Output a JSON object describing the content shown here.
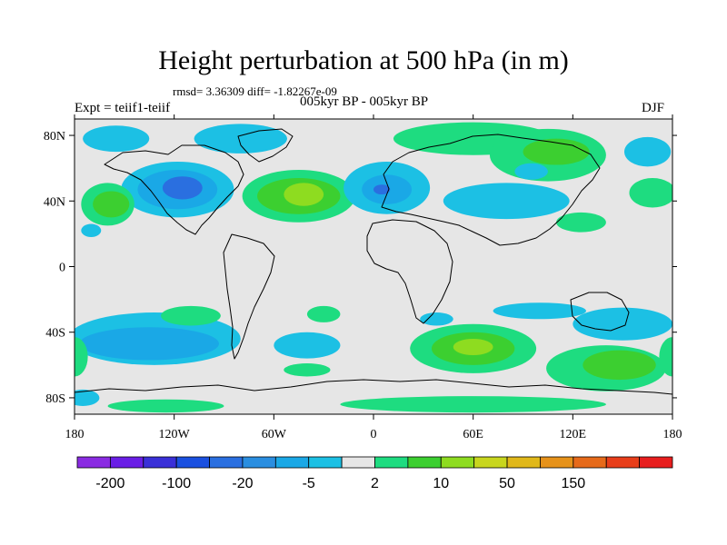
{
  "chart_data": {
    "type": "heatmap",
    "title": "Height perturbation at 500 hPa (in m)",
    "stats": "rmsd= 3.36309 diff= -1.82267e-09",
    "left_label": "Expt = teiif1-teiif",
    "center_label": "005kyr BP - 005kyr BP",
    "right_label": "DJF",
    "xlim": [
      -180,
      180
    ],
    "ylim": [
      -90,
      90
    ],
    "x_ticks": [
      {
        "value": -180,
        "label": "180"
      },
      {
        "value": -120,
        "label": "120W"
      },
      {
        "value": -60,
        "label": "60W"
      },
      {
        "value": 0,
        "label": "0"
      },
      {
        "value": 60,
        "label": "60E"
      },
      {
        "value": 120,
        "label": "120E"
      },
      {
        "value": 180,
        "label": "180"
      }
    ],
    "y_ticks": [
      {
        "value": 80,
        "label": "80N"
      },
      {
        "value": 40,
        "label": "40N"
      },
      {
        "value": 0,
        "label": "0"
      },
      {
        "value": -40,
        "label": "40S"
      },
      {
        "value": -80,
        "label": "80S"
      }
    ],
    "colorbar": {
      "colors": [
        "#8a2be2",
        "#6a1ee6",
        "#3a30d8",
        "#1a50e0",
        "#2a6fe0",
        "#2a8ee0",
        "#1aa8e6",
        "#1cc0e4",
        "#e6e6e6",
        "#1edc80",
        "#3ccf30",
        "#8edc20",
        "#c8d61e",
        "#e0b81a",
        "#e6921a",
        "#e66a1a",
        "#e83e1a",
        "#e81e1e"
      ],
      "labels": [
        {
          "boundary": 1,
          "text": "-200"
        },
        {
          "boundary": 3,
          "text": "-100"
        },
        {
          "boundary": 5,
          "text": "-20"
        },
        {
          "boundary": 7,
          "text": "-5"
        },
        {
          "boundary": 9,
          "text": "2"
        },
        {
          "boundary": 11,
          "text": "10"
        },
        {
          "boundary": 13,
          "text": "50"
        },
        {
          "boundary": 15,
          "text": "150"
        }
      ]
    },
    "regions": [
      {
        "lon": -118,
        "lat": 47,
        "rx": 34,
        "ry": 17,
        "level": "-5"
      },
      {
        "lon": -118,
        "lat": 47,
        "rx": 24,
        "ry": 12,
        "level": "-10"
      },
      {
        "lon": -115,
        "lat": 48,
        "rx": 12,
        "ry": 7,
        "level": "-20"
      },
      {
        "lon": -160,
        "lat": 38,
        "rx": 16,
        "ry": 13,
        "level": "5"
      },
      {
        "lon": -158,
        "lat": 38,
        "rx": 11,
        "ry": 8,
        "level": "10"
      },
      {
        "lon": -45,
        "lat": 43,
        "rx": 34,
        "ry": 16,
        "level": "5"
      },
      {
        "lon": -45,
        "lat": 43,
        "rx": 25,
        "ry": 11,
        "level": "10"
      },
      {
        "lon": -42,
        "lat": 44,
        "rx": 12,
        "ry": 7,
        "level": "20"
      },
      {
        "lon": 8,
        "lat": 48,
        "rx": 26,
        "ry": 16,
        "level": "-5"
      },
      {
        "lon": 8,
        "lat": 47,
        "rx": 15,
        "ry": 9,
        "level": "-10"
      },
      {
        "lon": 5,
        "lat": 47,
        "rx": 5,
        "ry": 3,
        "level": "-20"
      },
      {
        "lon": 60,
        "lat": 78,
        "rx": 48,
        "ry": 10,
        "level": "5"
      },
      {
        "lon": 105,
        "lat": 68,
        "rx": 35,
        "ry": 16,
        "level": "5"
      },
      {
        "lon": 110,
        "lat": 70,
        "rx": 20,
        "ry": 8,
        "level": "10"
      },
      {
        "lon": 80,
        "lat": 40,
        "rx": 38,
        "ry": 11,
        "level": "-5"
      },
      {
        "lon": 95,
        "lat": 58,
        "rx": 10,
        "ry": 5,
        "level": "-5"
      },
      {
        "lon": -80,
        "lat": 78,
        "rx": 28,
        "ry": 9,
        "level": "-5"
      },
      {
        "lon": -155,
        "lat": 78,
        "rx": 20,
        "ry": 8,
        "level": "-5"
      },
      {
        "lon": 165,
        "lat": 70,
        "rx": 14,
        "ry": 9,
        "level": "-5"
      },
      {
        "lon": 168,
        "lat": 45,
        "rx": 14,
        "ry": 9,
        "level": "5"
      },
      {
        "lon": 125,
        "lat": 27,
        "rx": 15,
        "ry": 6,
        "level": "5"
      },
      {
        "lon": -170,
        "lat": 22,
        "rx": 6,
        "ry": 4,
        "level": "-5"
      },
      {
        "lon": -132,
        "lat": -44,
        "rx": 52,
        "ry": 16,
        "level": "-5"
      },
      {
        "lon": -135,
        "lat": -47,
        "rx": 42,
        "ry": 10,
        "level": "-10"
      },
      {
        "lon": -40,
        "lat": -48,
        "rx": 20,
        "ry": 8,
        "level": "-5"
      },
      {
        "lon": -110,
        "lat": -30,
        "rx": 18,
        "ry": 6,
        "level": "5"
      },
      {
        "lon": -30,
        "lat": -29,
        "rx": 10,
        "ry": 5,
        "level": "5"
      },
      {
        "lon": -40,
        "lat": -63,
        "rx": 14,
        "ry": 4,
        "level": "5"
      },
      {
        "lon": 60,
        "lat": -50,
        "rx": 38,
        "ry": 15,
        "level": "5"
      },
      {
        "lon": 60,
        "lat": -50,
        "rx": 25,
        "ry": 10,
        "level": "10"
      },
      {
        "lon": 60,
        "lat": -49,
        "rx": 12,
        "ry": 5,
        "level": "20"
      },
      {
        "lon": 38,
        "lat": -32,
        "rx": 10,
        "ry": 4,
        "level": "-5"
      },
      {
        "lon": 100,
        "lat": -27,
        "rx": 28,
        "ry": 5,
        "level": "-5"
      },
      {
        "lon": 150,
        "lat": -35,
        "rx": 30,
        "ry": 10,
        "level": "-5"
      },
      {
        "lon": 140,
        "lat": -62,
        "rx": 36,
        "ry": 14,
        "level": "5"
      },
      {
        "lon": 148,
        "lat": -60,
        "rx": 22,
        "ry": 9,
        "level": "10"
      },
      {
        "lon": -180,
        "lat": -55,
        "rx": 8,
        "ry": 12,
        "level": "5"
      },
      {
        "lon": 180,
        "lat": -55,
        "rx": 8,
        "ry": 12,
        "level": "5"
      },
      {
        "lon": -175,
        "lat": -80,
        "rx": 10,
        "ry": 5,
        "level": "-5"
      },
      {
        "lon": -125,
        "lat": -85,
        "rx": 35,
        "ry": 4,
        "level": "5"
      },
      {
        "lon": 60,
        "lat": -84,
        "rx": 80,
        "ry": 5,
        "level": "5"
      }
    ]
  }
}
